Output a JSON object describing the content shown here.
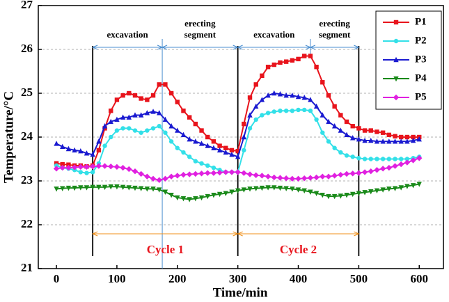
{
  "chart_data": {
    "type": "line",
    "x_label": "Time/min",
    "y_label": "Temperature/°C",
    "x": [
      0,
      10,
      20,
      30,
      40,
      50,
      60,
      70,
      80,
      90,
      100,
      110,
      120,
      130,
      140,
      150,
      160,
      170,
      180,
      190,
      200,
      210,
      220,
      230,
      240,
      250,
      260,
      270,
      280,
      290,
      300,
      310,
      320,
      330,
      340,
      350,
      360,
      370,
      380,
      390,
      400,
      410,
      420,
      430,
      440,
      450,
      460,
      470,
      480,
      490,
      500,
      510,
      520,
      530,
      540,
      550,
      560,
      570,
      580,
      590,
      600
    ],
    "series": [
      {
        "name": "P1",
        "color": "#e8141c",
        "marker": "square",
        "values": [
          23.4,
          23.38,
          23.37,
          23.35,
          23.35,
          23.33,
          23.35,
          23.7,
          24.2,
          24.6,
          24.85,
          24.95,
          25.0,
          24.95,
          24.88,
          24.85,
          24.95,
          25.2,
          25.2,
          25.0,
          24.8,
          24.6,
          24.45,
          24.3,
          24.15,
          24.0,
          23.9,
          23.8,
          23.75,
          23.7,
          23.68,
          24.3,
          24.9,
          25.2,
          25.4,
          25.6,
          25.65,
          25.7,
          25.72,
          25.75,
          25.78,
          25.85,
          25.85,
          25.6,
          25.25,
          24.95,
          24.7,
          24.5,
          24.35,
          24.25,
          24.2,
          24.15,
          24.15,
          24.12,
          24.1,
          24.05,
          24.02,
          24.0,
          24.0,
          24.0,
          24.0
        ]
      },
      {
        "name": "P2",
        "color": "#33e0e8",
        "marker": "circle",
        "values": [
          23.35,
          23.3,
          23.28,
          23.25,
          23.2,
          23.18,
          23.2,
          23.4,
          23.8,
          24.0,
          24.15,
          24.2,
          24.2,
          24.15,
          24.1,
          24.15,
          24.2,
          24.25,
          24.1,
          23.9,
          23.75,
          23.65,
          23.55,
          23.45,
          23.4,
          23.35,
          23.3,
          23.25,
          23.2,
          23.2,
          23.2,
          23.7,
          24.2,
          24.4,
          24.5,
          24.55,
          24.58,
          24.6,
          24.6,
          24.6,
          24.62,
          24.62,
          24.6,
          24.4,
          24.1,
          23.9,
          23.75,
          23.65,
          23.58,
          23.55,
          23.52,
          23.5,
          23.5,
          23.5,
          23.5,
          23.5,
          23.5,
          23.5,
          23.5,
          23.52,
          23.55
        ]
      },
      {
        "name": "P3",
        "color": "#1a1ad0",
        "marker": "triangle",
        "values": [
          23.85,
          23.78,
          23.73,
          23.7,
          23.68,
          23.63,
          23.6,
          23.9,
          24.25,
          24.35,
          24.4,
          24.45,
          24.45,
          24.5,
          24.5,
          24.55,
          24.58,
          24.55,
          24.4,
          24.25,
          24.15,
          24.05,
          23.95,
          23.9,
          23.85,
          23.8,
          23.75,
          23.7,
          23.65,
          23.6,
          23.55,
          24.0,
          24.5,
          24.7,
          24.85,
          24.95,
          25.0,
          24.98,
          24.95,
          24.95,
          24.92,
          24.9,
          24.85,
          24.7,
          24.5,
          24.35,
          24.25,
          24.15,
          24.05,
          23.98,
          23.95,
          23.92,
          23.92,
          23.9,
          23.9,
          23.9,
          23.9,
          23.9,
          23.9,
          23.92,
          23.95
        ]
      },
      {
        "name": "P4",
        "color": "#1a8a1a",
        "marker": "triangle-down",
        "values": [
          22.82,
          22.83,
          22.84,
          22.84,
          22.85,
          22.85,
          22.86,
          22.86,
          22.86,
          22.87,
          22.87,
          22.86,
          22.85,
          22.84,
          22.83,
          22.82,
          22.82,
          22.8,
          22.75,
          22.68,
          22.62,
          22.6,
          22.58,
          22.6,
          22.62,
          22.65,
          22.68,
          22.7,
          22.72,
          22.75,
          22.78,
          22.8,
          22.82,
          22.83,
          22.84,
          22.85,
          22.85,
          22.84,
          22.83,
          22.82,
          22.8,
          22.78,
          22.75,
          22.72,
          22.68,
          22.65,
          22.65,
          22.66,
          22.68,
          22.7,
          22.72,
          22.74,
          22.76,
          22.78,
          22.8,
          22.82,
          22.83,
          22.85,
          22.88,
          22.9,
          22.93
        ]
      },
      {
        "name": "P5",
        "color": "#e020e0",
        "marker": "diamond",
        "values": [
          23.28,
          23.3,
          23.3,
          23.31,
          23.32,
          23.32,
          23.33,
          23.34,
          23.34,
          23.33,
          23.32,
          23.3,
          23.27,
          23.22,
          23.16,
          23.1,
          23.05,
          23.02,
          23.05,
          23.1,
          23.12,
          23.14,
          23.15,
          23.16,
          23.17,
          23.18,
          23.18,
          23.19,
          23.2,
          23.2,
          23.2,
          23.18,
          23.15,
          23.13,
          23.12,
          23.1,
          23.08,
          23.07,
          23.06,
          23.05,
          23.05,
          23.06,
          23.07,
          23.08,
          23.1,
          23.1,
          23.12,
          23.14,
          23.16,
          23.17,
          23.18,
          23.2,
          23.22,
          23.25,
          23.28,
          23.3,
          23.34,
          23.38,
          23.42,
          23.47,
          23.52
        ]
      }
    ],
    "phases": [
      {
        "label": [
          "excavation"
        ],
        "start": 60,
        "end": 175
      },
      {
        "label": [
          "erecting",
          "segment"
        ],
        "start": 175,
        "end": 300
      },
      {
        "label": [
          "excavation"
        ],
        "start": 300,
        "end": 420
      },
      {
        "label": [
          "erecting",
          "segment"
        ],
        "start": 420,
        "end": 500
      }
    ],
    "cycles": [
      {
        "label": "Cycle 1",
        "start": 60,
        "end": 300
      },
      {
        "label": "Cycle 2",
        "start": 300,
        "end": 500
      }
    ],
    "xlim": [
      -30,
      640
    ],
    "ylim": [
      21,
      27
    ],
    "xticks": [
      0,
      100,
      200,
      300,
      400,
      500,
      600
    ],
    "yticks": [
      21,
      22,
      23,
      24,
      25,
      26,
      27
    ],
    "grid": true,
    "legend": "upper right"
  }
}
